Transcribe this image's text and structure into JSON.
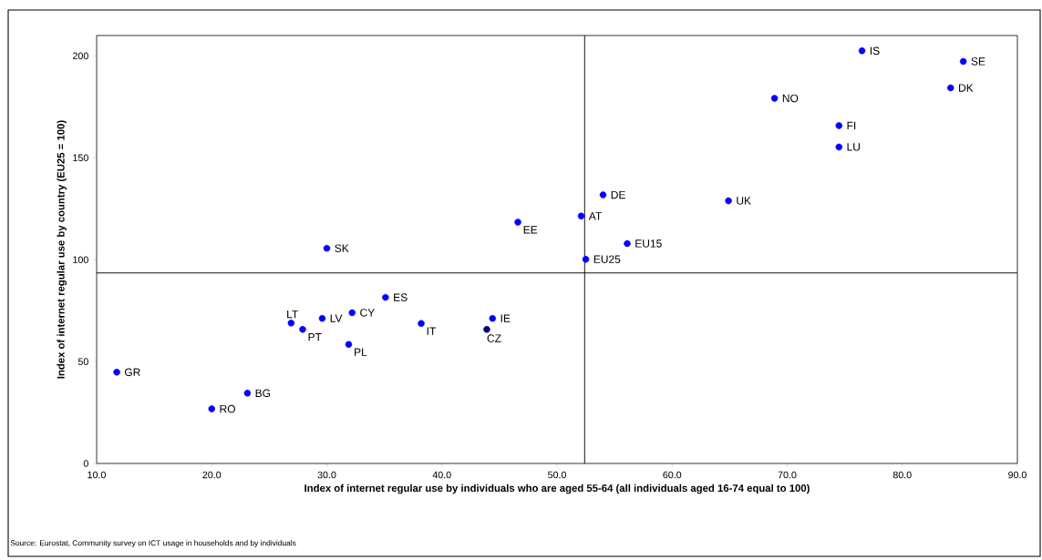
{
  "chart_data": {
    "type": "scatter",
    "xlabel": "Index of internet regular use by individuals who are aged 55-64 (all individuals aged 16-74 equal to 100)",
    "ylabel": "Index of internet regular use by country (EU25 = 100)",
    "x": [
      11.75,
      20.0,
      23.1,
      26.9,
      27.9,
      29.6,
      30.0,
      32.2,
      31.9,
      35.1,
      38.2,
      44.4,
      43.9,
      46.6,
      52.1,
      54.0,
      56.1,
      52.5,
      76.5,
      85.3,
      84.2,
      68.9,
      74.5,
      74.5,
      64.9
    ],
    "values": [
      44.8,
      26.8,
      34.5,
      68.9,
      65.8,
      71.2,
      105.6,
      74.0,
      58.4,
      81.5,
      68.7,
      71.2,
      65.8,
      118.4,
      121.4,
      131.8,
      107.9,
      100.2,
      202.5,
      197.3,
      184.3,
      179.2,
      165.8,
      155.3,
      128.9
    ],
    "colors": [
      "#0000ff",
      "#0000ff",
      "#0000ff",
      "#0000ff",
      "#0000ff",
      "#0000ff",
      "#0000ff",
      "#0000ff",
      "#0000ff",
      "#0000ff",
      "#0000ff",
      "#0000ff",
      "#000080",
      "#0000ff",
      "#0000ff",
      "#0000ff",
      "#0000ff",
      "#0000ff",
      "#0000ff",
      "#0000ff",
      "#0000ff",
      "#0000ff",
      "#0000ff",
      "#0000ff",
      "#0000ff"
    ],
    "marker": "circle",
    "xlim": [
      10,
      90
    ],
    "ylim": [
      0,
      210
    ],
    "xticks": [
      {
        "value": 10,
        "label": "10.0"
      },
      {
        "value": 20,
        "label": "20.0"
      },
      {
        "value": 30,
        "label": "30.0"
      },
      {
        "value": 40,
        "label": "40.0"
      },
      {
        "value": 50,
        "label": "50.0"
      },
      {
        "value": 60,
        "label": "60.0"
      },
      {
        "value": 70,
        "label": "70.0"
      },
      {
        "value": 80,
        "label": "80.0"
      },
      {
        "value": 90,
        "label": "90.0"
      }
    ],
    "yticks": [
      0,
      50,
      100,
      150,
      200
    ],
    "ref_lines": [
      {
        "axis": "x",
        "value": 52.4,
        "color": "#000000"
      },
      {
        "axis": "y",
        "value": 93.5,
        "color": "#000000"
      }
    ],
    "annotations": [
      {
        "text": "GR",
        "x": 11.75,
        "y": 44.8
      },
      {
        "text": "RO",
        "x": 20.0,
        "y": 26.8
      },
      {
        "text": "BG",
        "x": 23.1,
        "y": 34.5
      },
      {
        "text": "LT",
        "x": 26.9,
        "y": 68.9
      },
      {
        "text": "PT",
        "x": 27.9,
        "y": 65.8
      },
      {
        "text": "LV",
        "x": 29.6,
        "y": 71.2
      },
      {
        "text": "SK",
        "x": 30.0,
        "y": 105.6
      },
      {
        "text": "CY",
        "x": 32.2,
        "y": 74.0
      },
      {
        "text": "PL",
        "x": 31.9,
        "y": 58.4
      },
      {
        "text": "ES",
        "x": 35.1,
        "y": 81.5
      },
      {
        "text": "IT",
        "x": 38.2,
        "y": 68.7
      },
      {
        "text": "IE",
        "x": 44.4,
        "y": 71.2
      },
      {
        "text": "CZ",
        "x": 43.9,
        "y": 65.8
      },
      {
        "text": "EE",
        "x": 46.6,
        "y": 118.4
      },
      {
        "text": "AT",
        "x": 52.1,
        "y": 121.4
      },
      {
        "text": "DE",
        "x": 54.0,
        "y": 131.8
      },
      {
        "text": "EU15",
        "x": 56.1,
        "y": 107.9
      },
      {
        "text": "EU25",
        "x": 52.5,
        "y": 100.2
      },
      {
        "text": "IS",
        "x": 76.5,
        "y": 202.5
      },
      {
        "text": "SE",
        "x": 85.3,
        "y": 197.3
      },
      {
        "text": "DK",
        "x": 84.2,
        "y": 184.3
      },
      {
        "text": "NO",
        "x": 68.9,
        "y": 179.2
      },
      {
        "text": "FI",
        "x": 74.5,
        "y": 165.8
      },
      {
        "text": "LU",
        "x": 74.5,
        "y": 155.3
      },
      {
        "text": "UK",
        "x": 64.9,
        "y": 128.9
      },
      "Source: Eurostat, Community survey on ICT usage in households and by individuals"
    ]
  }
}
